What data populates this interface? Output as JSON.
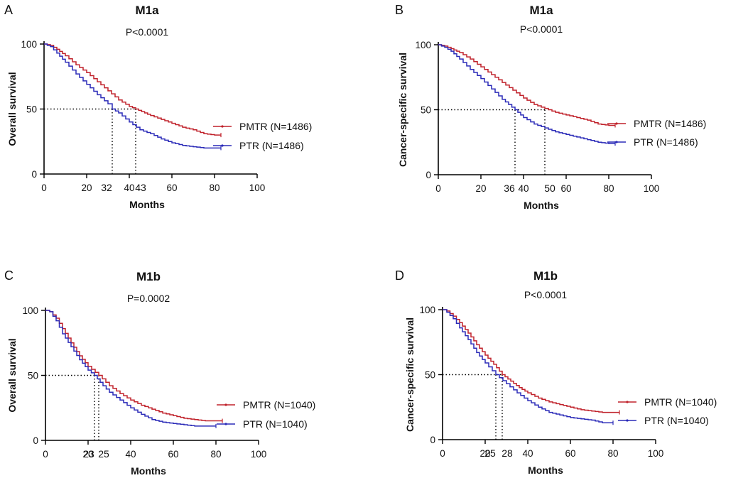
{
  "chart_data": [
    {
      "panel": "A",
      "type": "line",
      "title": "M1a",
      "pvalue": "P<0.0001",
      "xlabel": "Months",
      "ylabel": "Overall survival",
      "xlim": [
        0,
        100
      ],
      "ylim": [
        0,
        100
      ],
      "xticks": [
        0,
        20,
        40,
        60,
        80,
        100
      ],
      "yticks": [
        0,
        50,
        100
      ],
      "median_labels": [
        "32",
        "43"
      ],
      "medians": [
        32,
        43
      ],
      "series": [
        {
          "name": "PMTR",
          "legend": "PMTR (N=1486)",
          "color": "#c0222b",
          "x": [
            0,
            3,
            6,
            10,
            15,
            20,
            25,
            30,
            35,
            40,
            43,
            50,
            55,
            60,
            65,
            70,
            75,
            80,
            83
          ],
          "y": [
            100,
            99,
            96,
            91,
            84,
            78,
            71,
            64,
            57,
            52,
            50,
            45,
            42,
            39,
            36,
            34,
            31,
            30,
            30
          ]
        },
        {
          "name": "PTR",
          "legend": "PTR    (N=1486)",
          "color": "#2b2bb8",
          "x": [
            0,
            3,
            6,
            10,
            15,
            20,
            25,
            30,
            32,
            35,
            40,
            45,
            50,
            55,
            60,
            65,
            70,
            75,
            80,
            83
          ],
          "y": [
            100,
            98,
            93,
            86,
            77,
            69,
            61,
            54,
            50,
            47,
            40,
            34,
            31,
            27,
            24,
            22,
            21,
            20,
            20,
            20
          ]
        }
      ]
    },
    {
      "panel": "B",
      "type": "line",
      "title": "M1a",
      "pvalue": "P<0.0001",
      "xlabel": "Months",
      "ylabel": "Cancer-specific survival",
      "xlim": [
        0,
        100
      ],
      "ylim": [
        0,
        100
      ],
      "xticks": [
        0,
        20,
        40,
        60,
        80,
        100
      ],
      "yticks": [
        0,
        50,
        100
      ],
      "median_labels": [
        "36",
        "50"
      ],
      "medians": [
        36,
        50
      ],
      "series": [
        {
          "name": "PMTR",
          "legend": "PMTR (N=1486)",
          "color": "#c0222b",
          "x": [
            0,
            3,
            6,
            10,
            15,
            20,
            25,
            30,
            35,
            40,
            45,
            50,
            55,
            60,
            65,
            70,
            75,
            80,
            83
          ],
          "y": [
            100,
            99,
            97,
            94,
            89,
            83,
            77,
            71,
            65,
            59,
            54,
            51,
            48,
            46,
            44,
            42,
            39,
            38,
            38
          ]
        },
        {
          "name": "PTR",
          "legend": "PTR     (N=1486)",
          "color": "#2b2bb8",
          "x": [
            0,
            3,
            6,
            10,
            15,
            20,
            25,
            30,
            36,
            40,
            45,
            50,
            55,
            60,
            65,
            70,
            75,
            80,
            83
          ],
          "y": [
            100,
            98,
            95,
            89,
            81,
            74,
            66,
            58,
            50,
            44,
            39,
            36,
            33,
            31,
            29,
            27,
            25,
            24,
            24
          ]
        }
      ]
    },
    {
      "panel": "C",
      "type": "line",
      "title": "M1b",
      "pvalue": "P=0.0002",
      "xlabel": "Months",
      "ylabel": "Overall survival",
      "xlim": [
        0,
        100
      ],
      "ylim": [
        0,
        100
      ],
      "xticks": [
        0,
        20,
        40,
        60,
        80,
        100
      ],
      "yticks": [
        0,
        50,
        100
      ],
      "median_labels": [
        "23",
        "25"
      ],
      "medians": [
        23,
        25
      ],
      "series": [
        {
          "name": "PMTR",
          "legend": "PMTR (N=1040)",
          "color": "#c0222b",
          "x": [
            0,
            2,
            5,
            8,
            12,
            16,
            20,
            25,
            30,
            35,
            40,
            45,
            50,
            55,
            60,
            65,
            70,
            75,
            80,
            83
          ],
          "y": [
            100,
            99,
            94,
            86,
            75,
            65,
            57,
            50,
            42,
            36,
            31,
            27,
            24,
            21,
            19,
            17,
            16,
            15,
            15,
            15
          ]
        },
        {
          "name": "PTR",
          "legend": "PTR     (N=1040)",
          "color": "#2b2bb8",
          "x": [
            0,
            2,
            5,
            8,
            12,
            16,
            20,
            23,
            27,
            30,
            35,
            40,
            45,
            50,
            55,
            60,
            65,
            70,
            75,
            80
          ],
          "y": [
            100,
            99,
            92,
            82,
            72,
            62,
            54,
            50,
            42,
            37,
            31,
            25,
            20,
            16,
            14,
            13,
            12,
            11,
            11,
            11
          ]
        }
      ]
    },
    {
      "panel": "D",
      "type": "line",
      "title": "M1b",
      "pvalue": "P<0.0001",
      "xlabel": "Months",
      "ylabel": "Cancer-specific survival",
      "xlim": [
        0,
        100
      ],
      "ylim": [
        0,
        100
      ],
      "xticks": [
        0,
        20,
        40,
        60,
        80,
        100
      ],
      "yticks": [
        0,
        50,
        100
      ],
      "median_labels": [
        "25",
        "28"
      ],
      "medians": [
        25,
        28
      ],
      "series": [
        {
          "name": "PMTR",
          "legend": "PMTR (N=1040)",
          "color": "#c0222b",
          "x": [
            0,
            2,
            5,
            8,
            12,
            16,
            20,
            24,
            28,
            32,
            36,
            40,
            45,
            50,
            55,
            60,
            65,
            70,
            75,
            80,
            83
          ],
          "y": [
            100,
            99,
            95,
            90,
            82,
            73,
            65,
            58,
            50,
            45,
            40,
            36,
            32,
            29,
            27,
            25,
            23,
            22,
            21,
            21,
            21
          ]
        },
        {
          "name": "PTR",
          "legend": "PTR     (N=1040)",
          "color": "#2b2bb8",
          "x": [
            0,
            2,
            5,
            8,
            12,
            16,
            20,
            25,
            30,
            35,
            40,
            45,
            50,
            55,
            60,
            65,
            70,
            75,
            80
          ],
          "y": [
            100,
            98,
            93,
            86,
            77,
            67,
            59,
            50,
            43,
            36,
            30,
            25,
            21,
            19,
            17,
            16,
            15,
            13,
            13
          ]
        }
      ]
    }
  ]
}
